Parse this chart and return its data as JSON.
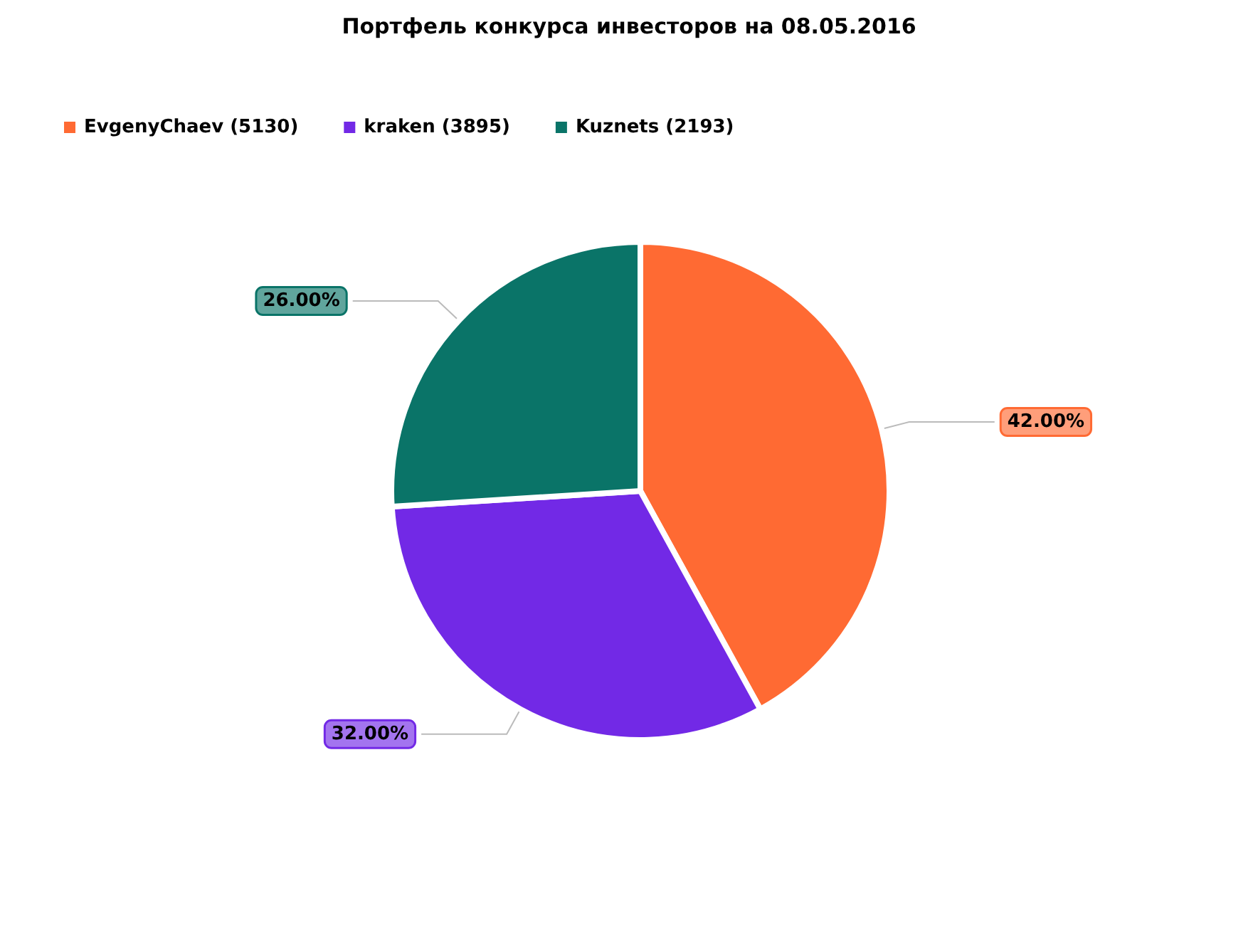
{
  "chart_data": {
    "type": "pie",
    "title": "Портфель конкурса инвесторов на 08.05.2016",
    "categories": [
      "EvgenyChaev (5130)",
      "kraken (3895)",
      "Kuznets (2193)"
    ],
    "values": [
      42,
      32,
      26
    ],
    "value_labels": [
      "42.00%",
      "32.00%",
      "26.00%"
    ],
    "colors": [
      "#ff6a33",
      "#7229e6",
      "#0a7468"
    ],
    "legend": "top left"
  }
}
